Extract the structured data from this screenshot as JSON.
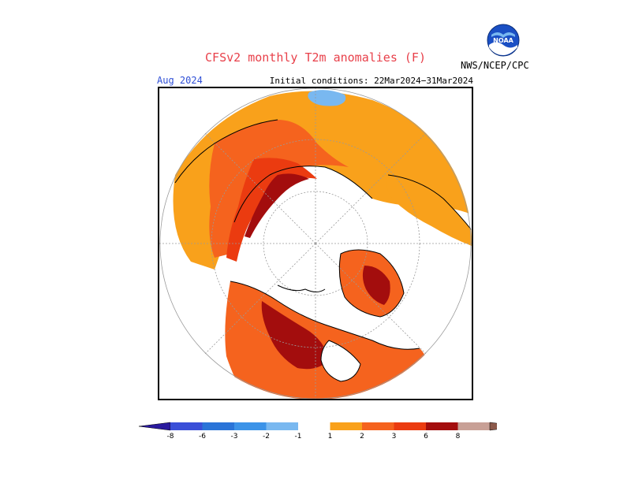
{
  "header": {
    "title": "CFSv2 monthly T2m anomalies (F)",
    "month": "Aug 2024",
    "initial_conditions": "Initial conditions: 22Mar2024−31Mar2024",
    "agency": "NWS/NCEP/CPC",
    "logo_text": "NOAA"
  },
  "colors": {
    "title": "#e8404a",
    "month": "#2f4fd6",
    "land_outline": "#000000",
    "grid": "#9a9a9a"
  },
  "legend": {
    "labels": [
      "-8",
      "-6",
      "-3",
      "-2",
      "-1",
      "1",
      "2",
      "3",
      "6",
      "8"
    ],
    "bins": [
      {
        "color": "#2a1a9e"
      },
      {
        "color": "#3a4fd8"
      },
      {
        "color": "#2a74d8"
      },
      {
        "color": "#3c93e8"
      },
      {
        "color": "#79b8f0"
      },
      {
        "color": "#ffffff"
      },
      {
        "color": "#f9a11b"
      },
      {
        "color": "#f5631e"
      },
      {
        "color": "#eb3b10"
      },
      {
        "color": "#a30d0d"
      },
      {
        "color": "#c8a096"
      },
      {
        "color": "#8c5a4b"
      }
    ]
  }
}
